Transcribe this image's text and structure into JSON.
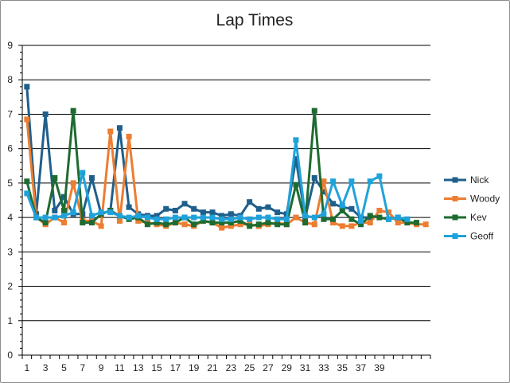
{
  "chart_data": {
    "type": "line",
    "title": "Lap Times",
    "xlabel": "",
    "ylabel": "",
    "ylim": [
      0,
      9
    ],
    "yticks": [
      "0",
      "1",
      "2",
      "3",
      "4",
      "5",
      "6",
      "7",
      "8",
      "9"
    ],
    "xticks": [
      "1",
      "3",
      "5",
      "7",
      "9",
      "11",
      "13",
      "15",
      "17",
      "19",
      "21",
      "23",
      "25",
      "27",
      "29",
      "31",
      "33",
      "35",
      "37",
      "39"
    ],
    "x_category_count": 44,
    "grid": "horizontal",
    "legend_position": "right",
    "series": [
      {
        "name": "Nick",
        "color": "#1f5f8b",
        "values": [
          7.8,
          4.1,
          7.0,
          4.2,
          4.6,
          4.1,
          4.1,
          5.15,
          4.1,
          4.2,
          6.6,
          4.3,
          4.1,
          4.05,
          4.05,
          4.25,
          4.2,
          4.4,
          4.25,
          4.15,
          4.15,
          4.05,
          4.1,
          4.05,
          4.45,
          4.25,
          4.3,
          4.15,
          4.1,
          5.7,
          4.0,
          5.15,
          4.75,
          4.4,
          4.3,
          4.25,
          4.0,
          4.0,
          null,
          null,
          null,
          null,
          null,
          null
        ]
      },
      {
        "name": "Woody",
        "color": "#ed7d31",
        "values": [
          6.85,
          4.0,
          3.8,
          4.0,
          3.85,
          5.0,
          3.9,
          3.9,
          3.75,
          6.5,
          3.9,
          6.35,
          3.9,
          3.85,
          3.8,
          3.75,
          3.85,
          3.8,
          3.75,
          3.9,
          3.85,
          3.7,
          3.75,
          3.8,
          3.8,
          3.75,
          3.8,
          3.85,
          3.8,
          4.0,
          3.85,
          3.8,
          5.05,
          3.85,
          3.75,
          3.75,
          3.85,
          3.85,
          4.2,
          4.15,
          3.85,
          3.85,
          3.8,
          3.8
        ]
      },
      {
        "name": "Kev",
        "color": "#1e6b30",
        "values": [
          5.05,
          4.0,
          3.85,
          5.15,
          4.2,
          7.1,
          3.85,
          3.85,
          4.1,
          4.2,
          4.05,
          3.95,
          4.0,
          3.8,
          3.85,
          3.8,
          3.85,
          4.0,
          3.8,
          3.9,
          3.85,
          3.85,
          3.85,
          3.9,
          3.75,
          3.8,
          3.85,
          3.8,
          3.8,
          4.95,
          3.85,
          7.1,
          3.95,
          3.95,
          4.2,
          3.95,
          3.8,
          4.05,
          4.0,
          3.95,
          4.0,
          3.85,
          3.85,
          null
        ]
      },
      {
        "name": "Geoff",
        "color": "#1fa2db",
        "values": [
          4.7,
          4.0,
          4.0,
          4.0,
          4.05,
          4.15,
          5.3,
          4.05,
          4.15,
          4.15,
          4.05,
          4.0,
          4.05,
          4.0,
          3.95,
          3.95,
          4.0,
          4.0,
          4.0,
          4.0,
          4.0,
          3.95,
          3.95,
          4.0,
          3.95,
          4.0,
          4.0,
          3.95,
          3.95,
          6.25,
          4.05,
          4.0,
          4.1,
          5.05,
          4.35,
          5.05,
          3.9,
          5.05,
          5.2,
          3.95,
          4.0,
          3.95,
          null,
          null
        ]
      }
    ]
  }
}
